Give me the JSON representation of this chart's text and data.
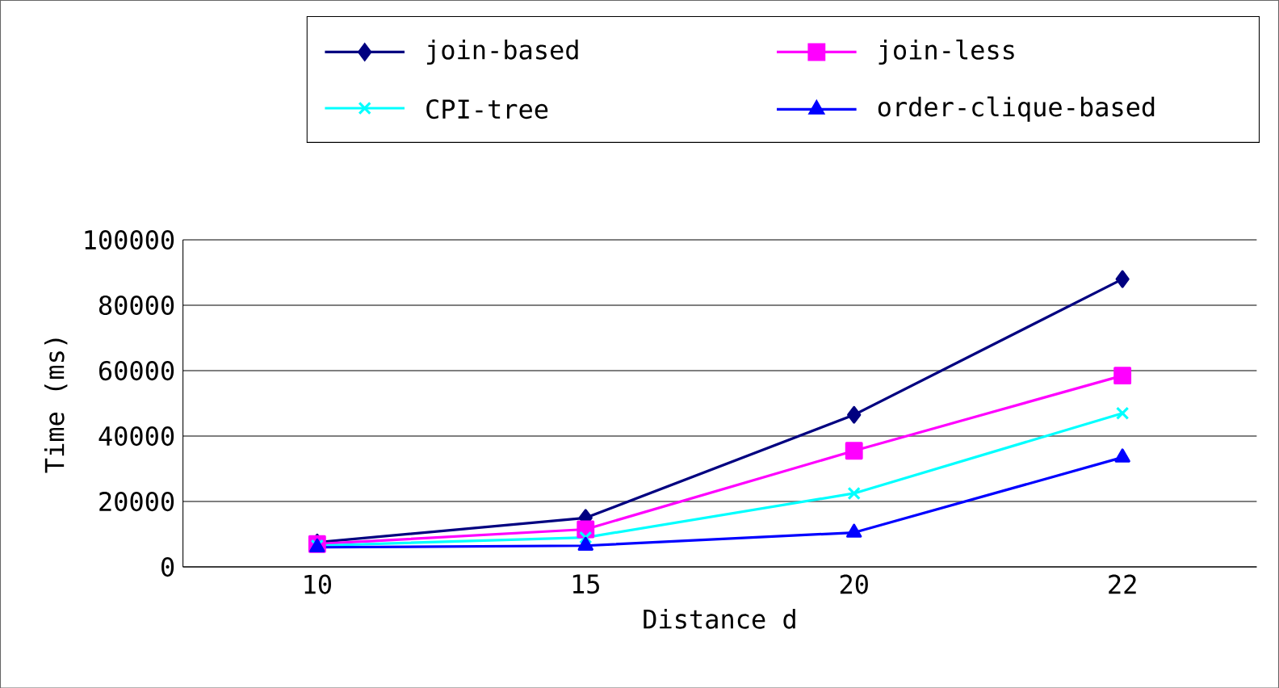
{
  "chart_data": {
    "type": "line",
    "xlabel": "Distance d",
    "ylabel": "Time (ms)",
    "categories": [
      "10",
      "15",
      "20",
      "22"
    ],
    "series": [
      {
        "name": "join-based",
        "color": "#000080",
        "marker": "diamond",
        "values": [
          7500,
          15000,
          46500,
          88000
        ]
      },
      {
        "name": "join-less",
        "color": "#ff00ff",
        "marker": "square",
        "values": [
          7000,
          11500,
          35500,
          58500
        ]
      },
      {
        "name": "CPI-tree",
        "color": "#00ffff",
        "marker": "cross",
        "values": [
          6500,
          9000,
          22500,
          47000
        ]
      },
      {
        "name": "order-clique-based",
        "color": "#0000ff",
        "marker": "triangle",
        "values": [
          6000,
          6500,
          10500,
          33500
        ]
      }
    ],
    "ylim": [
      0,
      100000
    ],
    "yticks": [
      0,
      20000,
      40000,
      60000,
      80000,
      100000
    ],
    "grid": "y",
    "legend": "top"
  }
}
